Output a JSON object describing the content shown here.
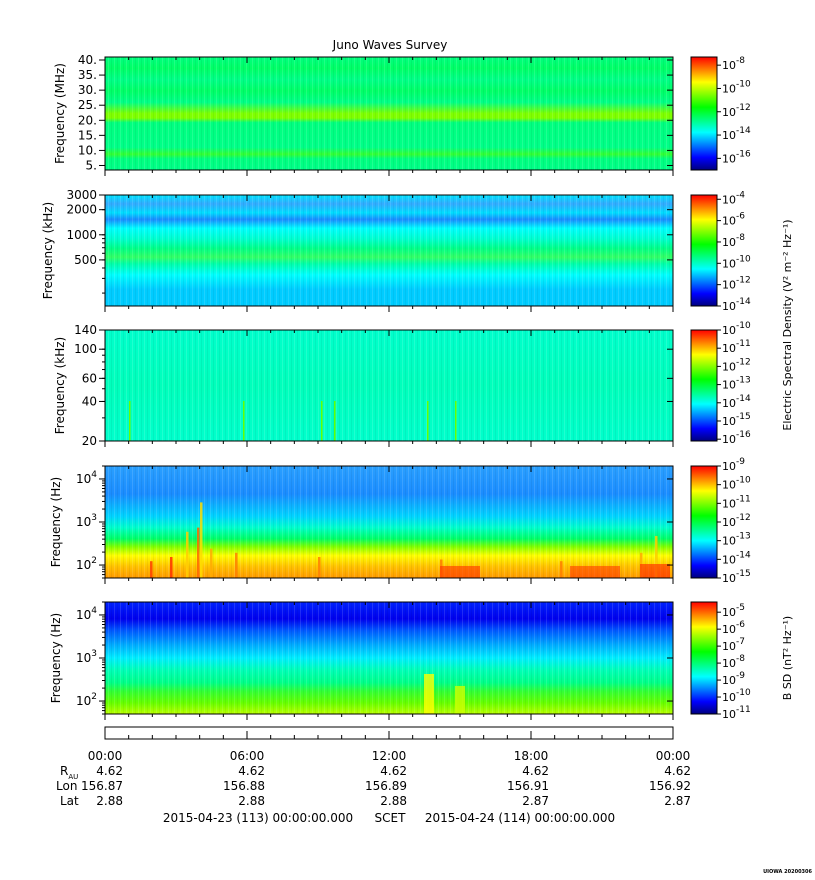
{
  "title": "Juno Waves Survey",
  "footer_mark": "UIOWA 20200306",
  "colors": {
    "axis": "#000000",
    "background": "#ffffff"
  },
  "colormap": [
    "#00007f",
    "#0000ff",
    "#007fff",
    "#00ffff",
    "#00ff7f",
    "#00ff00",
    "#7fff00",
    "#ffff00",
    "#ff7f00",
    "#ff0000"
  ],
  "chart_data": [
    {
      "type": "heatmap",
      "name": "panel-1",
      "ylabel": "Frequency (MHz)",
      "yscale": "linear",
      "ylim": [
        3.5,
        41
      ],
      "yticks": [
        {
          "v": 5,
          "label": "5."
        },
        {
          "v": 10,
          "label": "10."
        },
        {
          "v": 15,
          "label": "15."
        },
        {
          "v": 20,
          "label": "20."
        },
        {
          "v": 25,
          "label": "25."
        },
        {
          "v": 30,
          "label": "30."
        },
        {
          "v": 35,
          "label": "35."
        },
        {
          "v": 40,
          "label": "40."
        }
      ],
      "colorbar": {
        "ticks": [
          {
            "base": "10",
            "exp": "-8"
          },
          {
            "base": "10",
            "exp": "-10"
          },
          {
            "base": "10",
            "exp": "-12"
          },
          {
            "base": "10",
            "exp": "-14"
          },
          {
            "base": "10",
            "exp": "-16"
          }
        ],
        "log_range": [
          -17,
          -7.3
        ]
      }
    },
    {
      "type": "heatmap",
      "name": "panel-2",
      "ylabel": "Frequency (kHz)",
      "yscale": "log",
      "ylim": [
        140,
        3000
      ],
      "yticks": [
        {
          "v": 500,
          "label": "500"
        },
        {
          "v": 1000,
          "label": "1000"
        },
        {
          "v": 2000,
          "label": "2000"
        },
        {
          "v": 3000,
          "label": "3000"
        }
      ],
      "colorbar": {
        "ticks": [
          {
            "base": "10",
            "exp": "-4"
          },
          {
            "base": "10",
            "exp": "-6"
          },
          {
            "base": "10",
            "exp": "-8"
          },
          {
            "base": "10",
            "exp": "-10"
          },
          {
            "base": "10",
            "exp": "-12"
          },
          {
            "base": "10",
            "exp": "-14"
          }
        ],
        "log_range": [
          -14,
          -3.6
        ]
      }
    },
    {
      "type": "heatmap",
      "name": "panel-3",
      "ylabel": "Frequency (kHz)",
      "yscale": "log",
      "ylim": [
        20,
        140
      ],
      "yticks": [
        {
          "v": 20,
          "label": "20"
        },
        {
          "v": 40,
          "label": "40"
        },
        {
          "v": 60,
          "label": "60"
        },
        {
          "v": 100,
          "label": "100"
        },
        {
          "v": 140,
          "label": "140"
        }
      ],
      "colorbar": {
        "ticks": [
          {
            "base": "10",
            "exp": "-10"
          },
          {
            "base": "10",
            "exp": "-11"
          },
          {
            "base": "10",
            "exp": "-12"
          },
          {
            "base": "10",
            "exp": "-13"
          },
          {
            "base": "10",
            "exp": "-14"
          },
          {
            "base": "10",
            "exp": "-15"
          },
          {
            "base": "10",
            "exp": "-16"
          }
        ],
        "log_range": [
          -16.1,
          -10
        ]
      }
    },
    {
      "type": "heatmap",
      "name": "panel-4",
      "ylabel": "Frequency (Hz)",
      "yscale": "log",
      "ylim": [
        50,
        20000
      ],
      "yticks": [
        {
          "v": 100,
          "base": "10",
          "exp": "2"
        },
        {
          "v": 1000,
          "base": "10",
          "exp": "3"
        },
        {
          "v": 10000,
          "base": "10",
          "exp": "4"
        }
      ],
      "colorbar": {
        "ticks": [
          {
            "base": "10",
            "exp": "-9"
          },
          {
            "base": "10",
            "exp": "-10"
          },
          {
            "base": "10",
            "exp": "-11"
          },
          {
            "base": "10",
            "exp": "-12"
          },
          {
            "base": "10",
            "exp": "-13"
          },
          {
            "base": "10",
            "exp": "-14"
          },
          {
            "base": "10",
            "exp": "-15"
          }
        ],
        "log_range": [
          -15,
          -9
        ]
      }
    },
    {
      "type": "heatmap",
      "name": "panel-5",
      "ylabel": "Frequency (Hz)",
      "yscale": "log",
      "ylim": [
        50,
        20000
      ],
      "yticks": [
        {
          "v": 100,
          "base": "10",
          "exp": "2"
        },
        {
          "v": 1000,
          "base": "10",
          "exp": "3"
        },
        {
          "v": 10000,
          "base": "10",
          "exp": "4"
        }
      ],
      "colorbar": {
        "ticks": [
          {
            "base": "10",
            "exp": "-5"
          },
          {
            "base": "10",
            "exp": "-6"
          },
          {
            "base": "10",
            "exp": "-7"
          },
          {
            "base": "10",
            "exp": "-8"
          },
          {
            "base": "10",
            "exp": "-9"
          },
          {
            "base": "10",
            "exp": "-10"
          },
          {
            "base": "10",
            "exp": "-11"
          }
        ],
        "log_range": [
          -11,
          -4.4
        ]
      }
    }
  ],
  "colorbar_labels": {
    "electric": "Electric Spectral Density (V² m⁻² Hz⁻¹)",
    "magnetic": "B SD (nT² Hz⁻¹)"
  },
  "time_axis": {
    "labels": [
      "00:00",
      "06:00",
      "12:00",
      "18:00",
      "00:00"
    ],
    "rows": [
      {
        "label": "R",
        "sub": "AU",
        "values": [
          "4.62",
          "4.62",
          "4.62",
          "4.62",
          "4.62"
        ]
      },
      {
        "label": "Lon",
        "sub": "",
        "values": [
          "156.87",
          "156.88",
          "156.89",
          "156.91",
          "156.92"
        ]
      },
      {
        "label": "Lat",
        "sub": "",
        "values": [
          "2.88",
          "2.88",
          "2.88",
          "2.87",
          "2.87"
        ]
      }
    ],
    "start_text": "2015-04-23 (113) 00:00:00.000",
    "scet_text": "SCET",
    "end_text": "2015-04-24 (114) 00:00:00.000"
  }
}
